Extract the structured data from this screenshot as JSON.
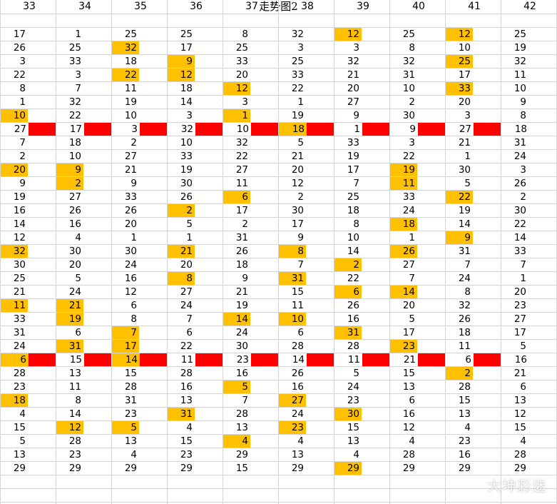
{
  "title": "走势图2",
  "watermark": "大坤彩迷",
  "colors": {
    "highlight": "#ffc000",
    "bar": "#ff0000",
    "grid": "#d4d4d4"
  },
  "column_headers": [
    "33",
    "34",
    "35",
    "36",
    "37",
    "38",
    "39",
    "40",
    "41",
    "42"
  ],
  "rows": [
    [
      17,
      1,
      25,
      25,
      8,
      32,
      12,
      25,
      12,
      25
    ],
    [
      26,
      25,
      32,
      17,
      25,
      3,
      3,
      8,
      10,
      19
    ],
    [
      3,
      33,
      18,
      9,
      33,
      25,
      32,
      32,
      25,
      32
    ],
    [
      22,
      3,
      22,
      12,
      20,
      33,
      21,
      31,
      17,
      11
    ],
    [
      8,
      7,
      11,
      18,
      12,
      22,
      20,
      10,
      33,
      10
    ],
    [
      1,
      32,
      19,
      14,
      3,
      1,
      27,
      2,
      20,
      9
    ],
    [
      10,
      22,
      10,
      3,
      1,
      19,
      9,
      30,
      3,
      8
    ],
    [
      27,
      17,
      3,
      32,
      10,
      18,
      1,
      9,
      27,
      18
    ],
    [
      7,
      18,
      2,
      10,
      32,
      5,
      33,
      3,
      21,
      31
    ],
    [
      2,
      10,
      27,
      33,
      22,
      21,
      19,
      22,
      1,
      24
    ],
    [
      20,
      9,
      21,
      19,
      27,
      20,
      17,
      19,
      30,
      3
    ],
    [
      9,
      2,
      9,
      30,
      11,
      12,
      7,
      11,
      5,
      26
    ],
    [
      19,
      27,
      33,
      26,
      6,
      2,
      25,
      33,
      22,
      2
    ],
    [
      16,
      26,
      26,
      2,
      17,
      30,
      18,
      24,
      19,
      30
    ],
    [
      14,
      16,
      20,
      5,
      2,
      17,
      8,
      18,
      14,
      22
    ],
    [
      12,
      4,
      1,
      1,
      31,
      9,
      10,
      1,
      9,
      14
    ],
    [
      32,
      30,
      30,
      21,
      26,
      8,
      14,
      26,
      31,
      33
    ],
    [
      30,
      20,
      24,
      20,
      18,
      7,
      2,
      27,
      7,
      7
    ],
    [
      25,
      5,
      16,
      8,
      9,
      31,
      22,
      7,
      24,
      1
    ],
    [
      21,
      24,
      12,
      27,
      21,
      15,
      6,
      14,
      8,
      20
    ],
    [
      11,
      21,
      6,
      24,
      19,
      11,
      26,
      20,
      32,
      23
    ],
    [
      33,
      19,
      8,
      7,
      14,
      10,
      16,
      5,
      26,
      27
    ],
    [
      31,
      6,
      7,
      6,
      24,
      6,
      31,
      17,
      18,
      17
    ],
    [
      24,
      31,
      17,
      22,
      30,
      28,
      28,
      23,
      11,
      5
    ],
    [
      6,
      15,
      14,
      11,
      23,
      14,
      11,
      21,
      6,
      16
    ],
    [
      28,
      13,
      15,
      28,
      16,
      26,
      5,
      15,
      2,
      21
    ],
    [
      23,
      11,
      28,
      16,
      5,
      16,
      24,
      13,
      28,
      6
    ],
    [
      18,
      8,
      31,
      13,
      7,
      27,
      23,
      6,
      15,
      13
    ],
    [
      4,
      14,
      23,
      31,
      28,
      24,
      30,
      16,
      13,
      12
    ],
    [
      15,
      12,
      5,
      4,
      13,
      23,
      15,
      12,
      4,
      15
    ],
    [
      5,
      28,
      13,
      15,
      4,
      4,
      13,
      4,
      23,
      4
    ],
    [
      13,
      23,
      4,
      23,
      29,
      13,
      4,
      28,
      16,
      28
    ],
    [
      29,
      29,
      29,
      29,
      15,
      29,
      29,
      29,
      29,
      29
    ]
  ],
  "highlights": [
    [
      0,
      6
    ],
    [
      0,
      8
    ],
    [
      1,
      2
    ],
    [
      2,
      3
    ],
    [
      2,
      8
    ],
    [
      3,
      2
    ],
    [
      3,
      3
    ],
    [
      4,
      4
    ],
    [
      4,
      8
    ],
    [
      6,
      0
    ],
    [
      6,
      4
    ],
    [
      7,
      5
    ],
    [
      10,
      0
    ],
    [
      10,
      1
    ],
    [
      10,
      7
    ],
    [
      11,
      1
    ],
    [
      11,
      7
    ],
    [
      12,
      4
    ],
    [
      12,
      8
    ],
    [
      13,
      3
    ],
    [
      14,
      7
    ],
    [
      15,
      8
    ],
    [
      16,
      0
    ],
    [
      16,
      3
    ],
    [
      16,
      5
    ],
    [
      16,
      7
    ],
    [
      17,
      6
    ],
    [
      18,
      3
    ],
    [
      18,
      5
    ],
    [
      19,
      6
    ],
    [
      19,
      7
    ],
    [
      20,
      0
    ],
    [
      20,
      1
    ],
    [
      21,
      1
    ],
    [
      21,
      4
    ],
    [
      21,
      5
    ],
    [
      22,
      2
    ],
    [
      22,
      6
    ],
    [
      23,
      1
    ],
    [
      23,
      2
    ],
    [
      23,
      7
    ],
    [
      24,
      0
    ],
    [
      24,
      2
    ],
    [
      25,
      8
    ],
    [
      26,
      4
    ],
    [
      27,
      0
    ],
    [
      27,
      5
    ],
    [
      28,
      3
    ],
    [
      28,
      6
    ],
    [
      29,
      1
    ],
    [
      29,
      2
    ],
    [
      29,
      5
    ],
    [
      30,
      4
    ],
    [
      32,
      6
    ]
  ],
  "red_bar_rows": [
    7,
    24
  ],
  "empty_rows_after": 2
}
